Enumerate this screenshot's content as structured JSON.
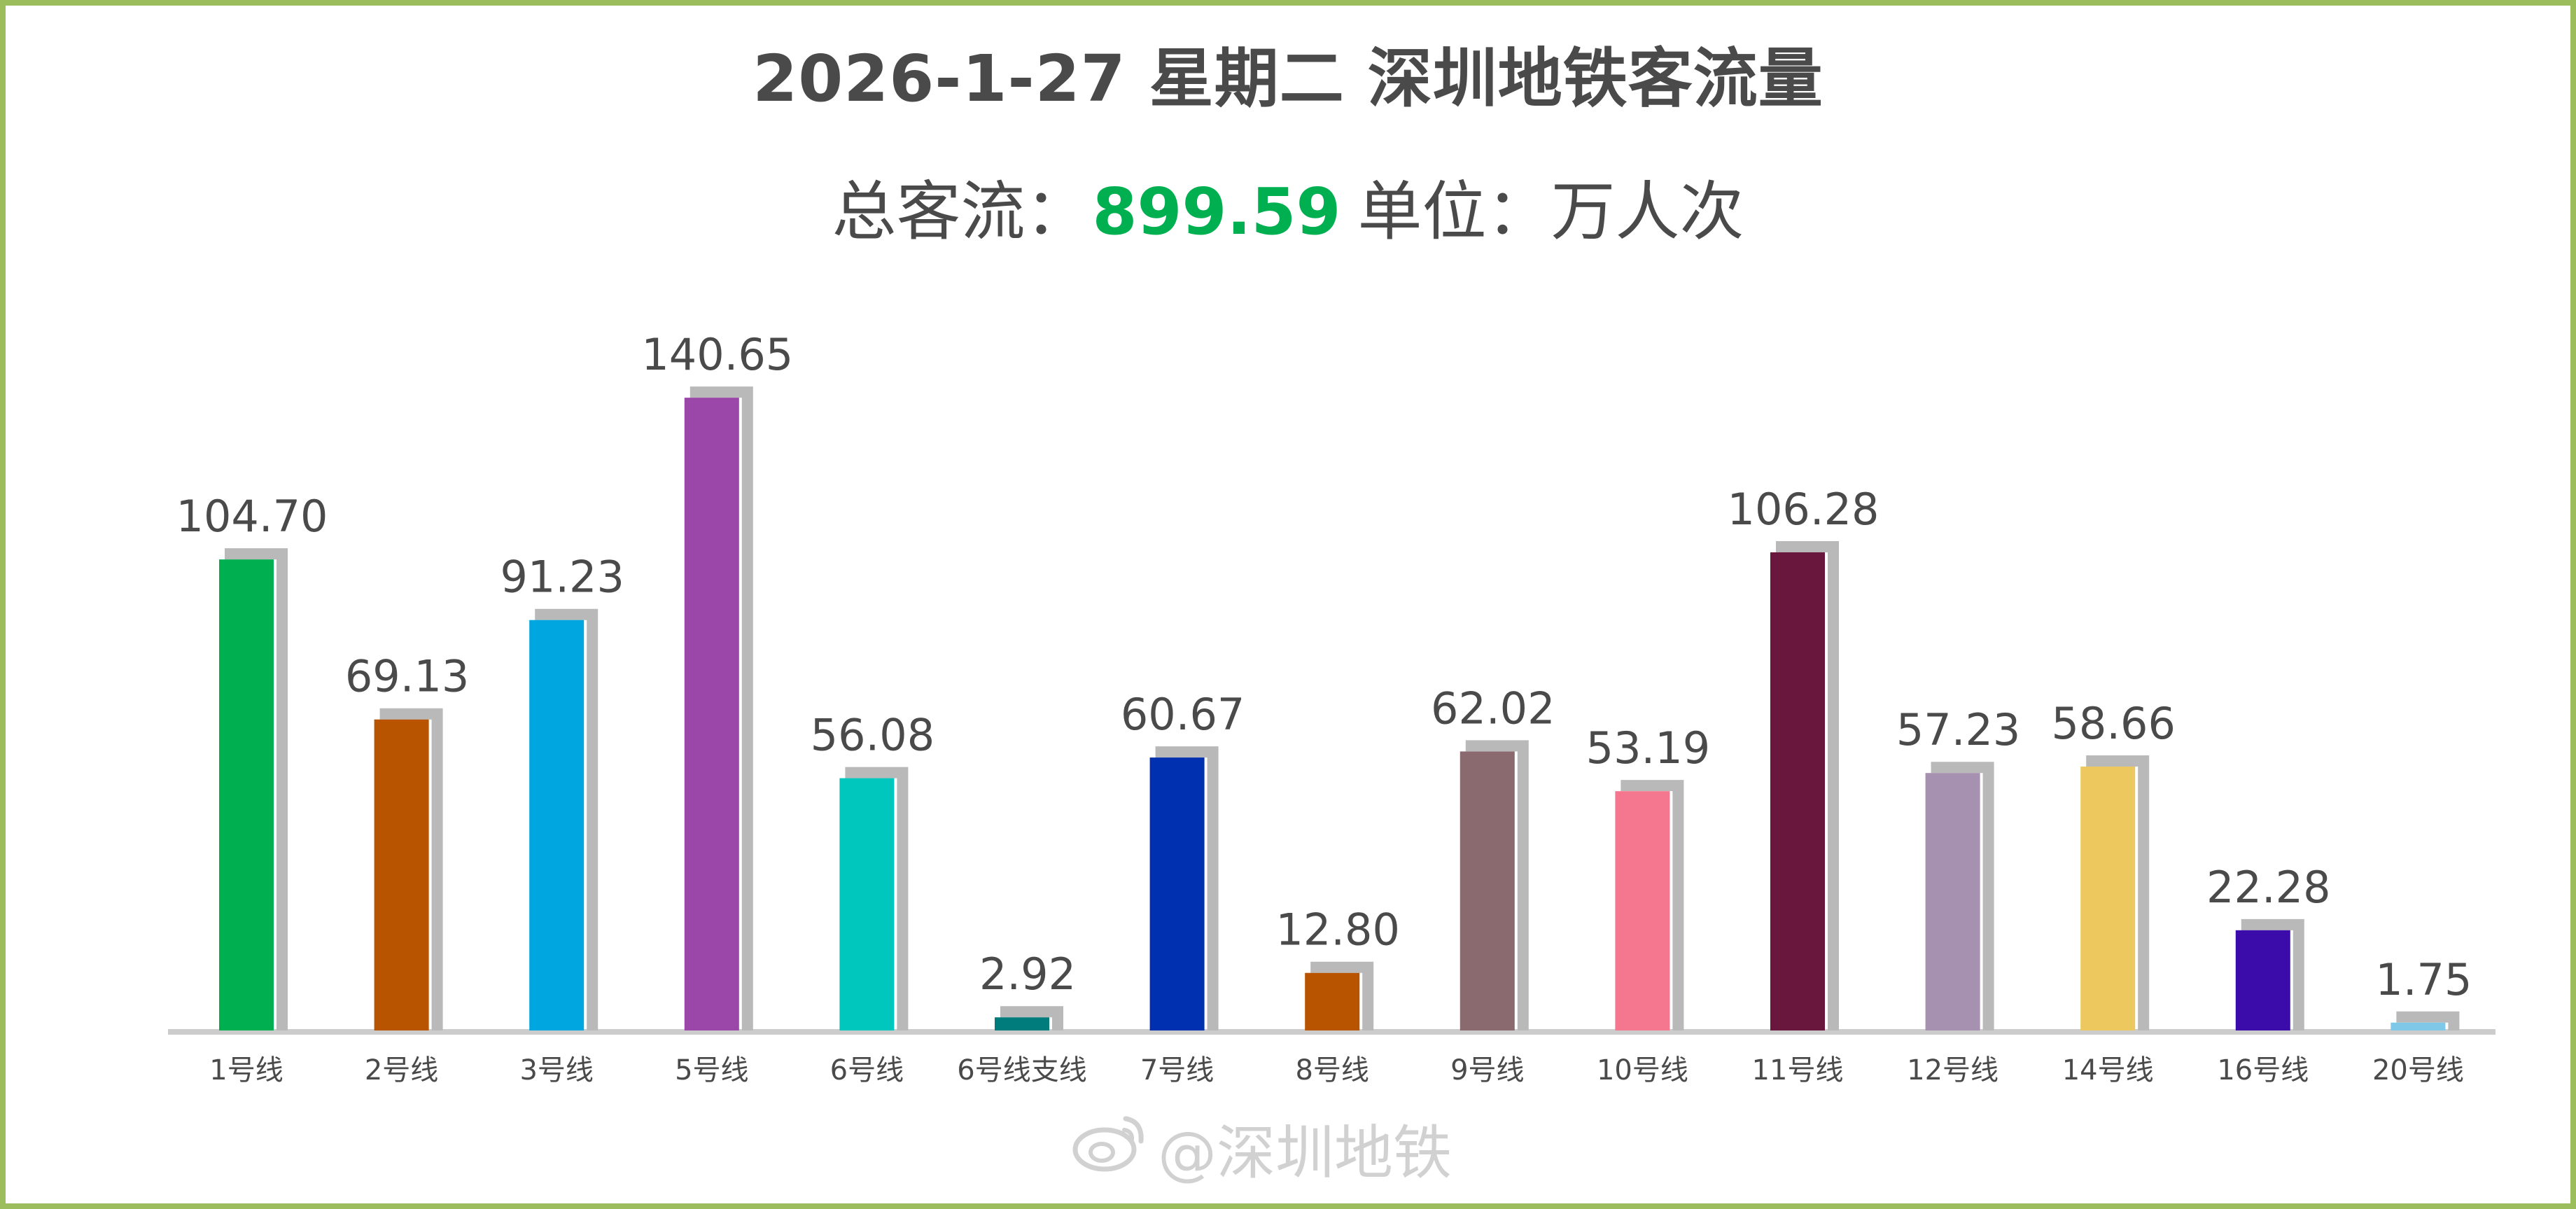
{
  "header": {
    "title": "2026-1-27 星期二  深圳地铁客流量",
    "total_label": "总客流：",
    "total_value": "899.59",
    "unit_text": "单位：万人次"
  },
  "colors": {
    "frame": "#9cbd5b",
    "total_value": "#00b050",
    "text": "#4a4a4a",
    "shadow": "#b9b9b9",
    "axis": "#cccccc"
  },
  "watermark": {
    "icon": "weibo-icon",
    "text": "@深圳地铁"
  },
  "chart_data": {
    "type": "bar",
    "categories": [
      "1号线",
      "2号线",
      "3号线",
      "5号线",
      "6号线",
      "6号线支线",
      "7号线",
      "8号线",
      "9号线",
      "10号线",
      "11号线",
      "12号线",
      "14号线",
      "16号线",
      "20号线"
    ],
    "values": [
      104.7,
      69.13,
      91.23,
      140.65,
      56.08,
      2.92,
      60.67,
      12.8,
      62.02,
      53.19,
      106.28,
      57.23,
      58.66,
      22.28,
      1.75
    ],
    "value_labels": [
      "104.70",
      "69.13",
      "91.23",
      "140.65",
      "56.08",
      "2.92",
      "60.67",
      "12.80",
      "62.02",
      "53.19",
      "106.28",
      "57.23",
      "58.66",
      "22.28",
      "1.75"
    ],
    "colors": [
      "#00b050",
      "#b85400",
      "#00a6e0",
      "#9b47aa",
      "#00c7bd",
      "#007c7c",
      "#0030b0",
      "#b85400",
      "#8a6a6e",
      "#f5778f",
      "#6a173e",
      "#a791b0",
      "#ecc85e",
      "#3c0caa",
      "#7fc8e8"
    ],
    "title": "2026-1-27 星期二  深圳地铁客流量",
    "xlabel": "",
    "ylabel": "",
    "ylim": [
      0,
      150
    ],
    "grid": false,
    "legend": "none"
  }
}
